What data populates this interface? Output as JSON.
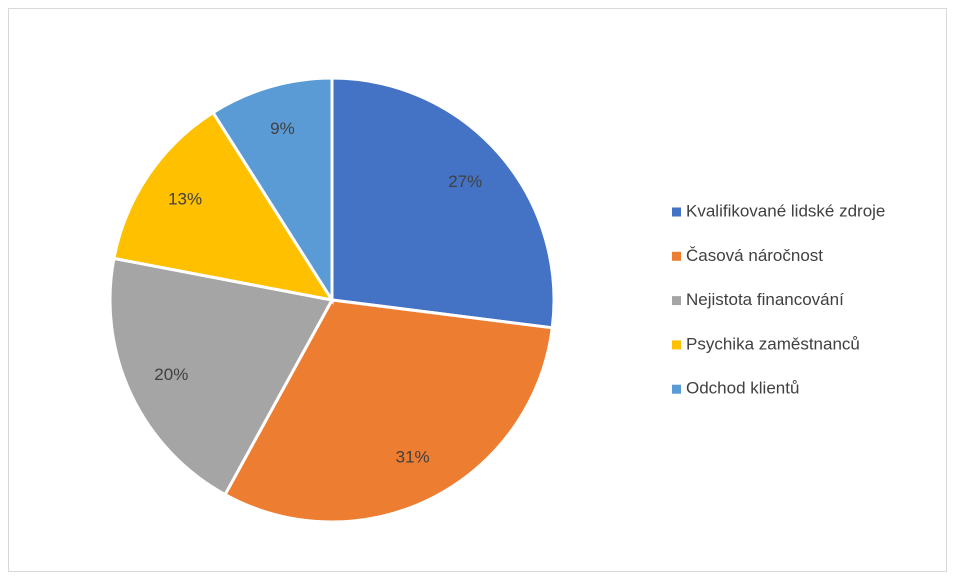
{
  "chart_data": {
    "type": "pie",
    "categories": [
      "Kvalifikované lidské zdroje",
      "Časová náročnost",
      "Nejistota financování",
      "Psychika zaměstnanců",
      "Odchod klientů"
    ],
    "values": [
      27,
      31,
      20,
      13,
      9
    ],
    "value_labels": [
      "27%",
      "31%",
      "20%",
      "13%",
      "9%"
    ],
    "colors": [
      "#4472c4",
      "#ed7d31",
      "#a5a5a5",
      "#ffc000",
      "#5b9bd5"
    ],
    "legend": "right"
  }
}
